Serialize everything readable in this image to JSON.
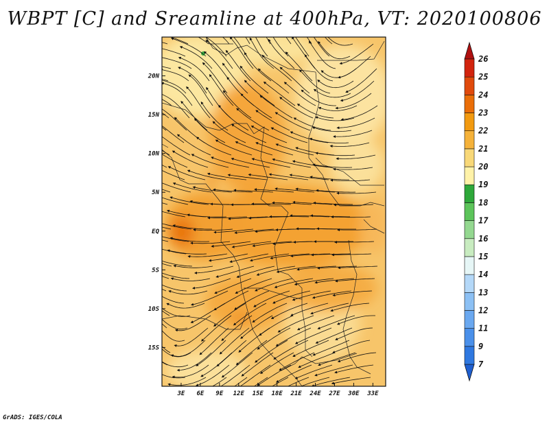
{
  "chart_data": {
    "type": "heatmap",
    "title": "WBPT [C] and Sreamline at 400hPa, VT: 2020100806",
    "x_ticks": [
      "3E",
      "6E",
      "9E",
      "12E",
      "15E",
      "18E",
      "21E",
      "24E",
      "27E",
      "30E",
      "33E"
    ],
    "x_values": [
      3,
      6,
      9,
      12,
      15,
      18,
      21,
      24,
      27,
      30,
      33
    ],
    "y_ticks": [
      "20N",
      "15N",
      "10N",
      "5N",
      "EQ",
      "5S",
      "10S",
      "15S"
    ],
    "y_values": [
      20,
      15,
      10,
      5,
      0,
      -5,
      -10,
      -15
    ],
    "xlim": [
      0,
      35
    ],
    "ylim": [
      -20,
      25
    ],
    "colorbar": {
      "levels": [
        "7",
        "9",
        "11",
        "12",
        "13",
        "14",
        "15",
        "16",
        "17",
        "18",
        "19",
        "20",
        "21",
        "22",
        "23",
        "24",
        "25",
        "26"
      ],
      "colors": [
        "#1e5fd0",
        "#2f78e0",
        "#4a90ea",
        "#6aa8f0",
        "#8cc0f4",
        "#b4d8f8",
        "#e6f6f6",
        "#c8ecc0",
        "#94d890",
        "#5cc45a",
        "#2ea83a",
        "#fff2a8",
        "#f8d878",
        "#f5b23a",
        "#f29a10",
        "#ea6e08",
        "#e04a0c",
        "#d2240e",
        "#b01010"
      ]
    },
    "fields": [
      {
        "name": "WBPT",
        "units": "C"
      },
      {
        "name": "Streamline",
        "level": "400hPa"
      }
    ]
  },
  "footer": "GrADS: IGES/COLA"
}
